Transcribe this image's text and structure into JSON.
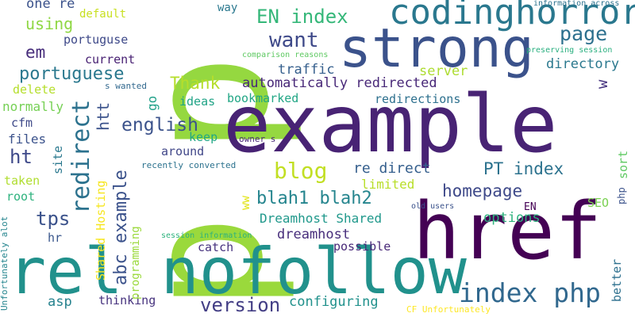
{
  "words": [
    {
      "text": "p",
      "color": "#95d840"
    },
    {
      "text": "p",
      "color": "#9ad93c"
    },
    {
      "text": "example",
      "color": "#482374"
    },
    {
      "text": "strong",
      "color": "#3b528b"
    },
    {
      "text": "codinghorror",
      "color": "#2a788e"
    },
    {
      "text": "href",
      "color": "#440154"
    },
    {
      "text": "rel nofollow",
      "color": "#21918c"
    },
    {
      "text": "index php",
      "color": "#31688e"
    },
    {
      "text": "blog",
      "color": "#c2df23"
    },
    {
      "text": "redirect",
      "color": "#2c728e"
    },
    {
      "text": "EN index",
      "color": "#35b779"
    },
    {
      "text": "want",
      "color": "#3e4989"
    },
    {
      "text": "page",
      "color": "#2d708e"
    },
    {
      "text": "portuguese",
      "color": "#2a788e"
    },
    {
      "text": "automatically redirected",
      "color": "#482878"
    },
    {
      "text": "Thank",
      "color": "#b5de2b"
    },
    {
      "text": "english",
      "color": "#3b528b"
    },
    {
      "text": "blah1 blah2",
      "color": "#25858e"
    },
    {
      "text": "homepage",
      "color": "#3e4989"
    },
    {
      "text": "PT index",
      "color": "#2c728e"
    },
    {
      "text": "re direct",
      "color": "#355f8d"
    },
    {
      "text": "version",
      "color": "#433e85"
    },
    {
      "text": "abc example",
      "color": "#3b528b"
    },
    {
      "text": "tps",
      "color": "#3b528b"
    },
    {
      "text": "ht",
      "color": "#3e4989"
    },
    {
      "text": "em",
      "color": "#472d7b"
    },
    {
      "text": "one re",
      "color": "#3b528b"
    },
    {
      "text": "using",
      "color": "#8fd744"
    },
    {
      "text": "default",
      "color": "#c8e020"
    },
    {
      "text": "way",
      "color": "#2a788e"
    },
    {
      "text": "information across",
      "color": "#2c728e"
    },
    {
      "text": "portuguse",
      "color": "#3e4989"
    },
    {
      "text": "current",
      "color": "#482173"
    },
    {
      "text": "traffic",
      "color": "#355f8d"
    },
    {
      "text": "server",
      "color": "#addc30"
    },
    {
      "text": "directory",
      "color": "#2a788e"
    },
    {
      "text": "preserving session",
      "color": "#29af7f"
    },
    {
      "text": "comparison reasons",
      "color": "#5ec962"
    },
    {
      "text": "s wanted",
      "color": "#31688e"
    },
    {
      "text": "bookmarked",
      "color": "#21a685"
    },
    {
      "text": "redirections",
      "color": "#2d708e"
    },
    {
      "text": "delete",
      "color": "#b5de2b"
    },
    {
      "text": "normally",
      "color": "#75d054"
    },
    {
      "text": "cfm",
      "color": "#3e4989"
    },
    {
      "text": "files",
      "color": "#3b528b"
    },
    {
      "text": "ideas",
      "color": "#20a386"
    },
    {
      "text": "keep",
      "color": "#22a884"
    },
    {
      "text": "owner s",
      "color": "#482878"
    },
    {
      "text": "around",
      "color": "#404688"
    },
    {
      "text": "recently converted",
      "color": "#2c728e"
    },
    {
      "text": "limited",
      "color": "#b8de29"
    },
    {
      "text": "Dreamhost Shared",
      "color": "#1f988b"
    },
    {
      "text": "dreamhost",
      "color": "#472d7b"
    },
    {
      "text": "options",
      "color": "#2db27d"
    },
    {
      "text": "possible",
      "color": "#482878"
    },
    {
      "text": "catch",
      "color": "#46327e"
    },
    {
      "text": "session information",
      "color": "#2db27d"
    },
    {
      "text": "old users",
      "color": "#3b528b"
    },
    {
      "text": "EN",
      "color": "#440154"
    },
    {
      "text": "SEO",
      "color": "#7ad151"
    },
    {
      "text": "configuring",
      "color": "#21918c"
    },
    {
      "text": "asp",
      "color": "#26828e"
    },
    {
      "text": "thinking",
      "color": "#46327e"
    },
    {
      "text": "CF Unfortunately",
      "color": "#fde725"
    },
    {
      "text": "taken",
      "color": "#b0dd2f"
    },
    {
      "text": "root",
      "color": "#2db27d"
    },
    {
      "text": "hr",
      "color": "#39568c"
    },
    {
      "text": "go",
      "color": "#1fa088"
    },
    {
      "text": "w",
      "color": "#46337f"
    },
    {
      "text": "sort",
      "color": "#5ec962"
    },
    {
      "text": "better",
      "color": "#2d708e"
    },
    {
      "text": "htt",
      "color": "#3b528b"
    },
    {
      "text": "ww",
      "color": "#e2e418"
    },
    {
      "text": "Shared Hosting",
      "color": "#f6e620"
    },
    {
      "text": "programming",
      "color": "#9bd93c"
    },
    {
      "text": "site",
      "color": "#2a788e"
    },
    {
      "text": "Unfortunately alot",
      "color": "#25858e"
    },
    {
      "text": "php",
      "color": "#3b528b"
    }
  ]
}
